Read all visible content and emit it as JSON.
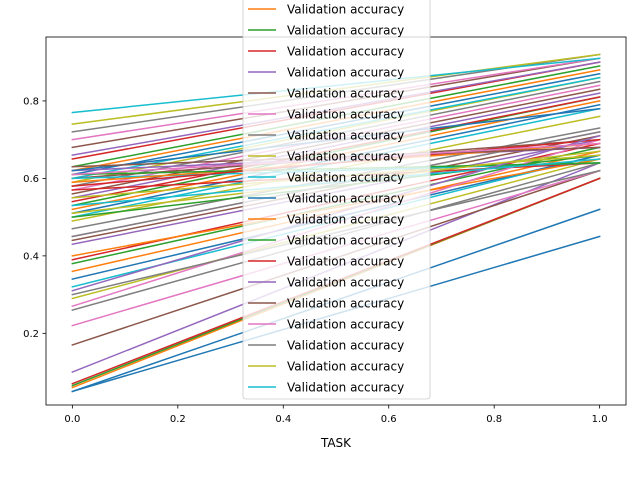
{
  "chart_data": {
    "type": "line",
    "title": "",
    "xlabel": "TASK",
    "ylabel": "",
    "xlim": [
      -0.05,
      1.05
    ],
    "ylim": [
      0.015,
      0.965
    ],
    "grid": false,
    "legend_placement": "upper-center",
    "x_ticks": [
      "0.0",
      "0.2",
      "0.4",
      "0.6",
      "0.8",
      "1.0"
    ],
    "y_ticks": [
      "0.2",
      "0.4",
      "0.6",
      "0.8"
    ],
    "legend_entries": [
      {
        "label": "Validation accuracy",
        "color": "#ff7f0e"
      },
      {
        "label": "Validation accuracy",
        "color": "#2ca02c"
      },
      {
        "label": "Validation accuracy",
        "color": "#d62728"
      },
      {
        "label": "Validation accuracy",
        "color": "#9467bd"
      },
      {
        "label": "Validation accuracy",
        "color": "#8c564b"
      },
      {
        "label": "Validation accuracy",
        "color": "#e377c2"
      },
      {
        "label": "Validation accuracy",
        "color": "#7f7f7f"
      },
      {
        "label": "Validation accuracy",
        "color": "#bcbd22"
      },
      {
        "label": "Validation accuracy",
        "color": "#17becf"
      },
      {
        "label": "Validation accuracy",
        "color": "#1f77b4"
      },
      {
        "label": "Validation accuracy",
        "color": "#ff7f0e"
      },
      {
        "label": "Validation accuracy",
        "color": "#2ca02c"
      },
      {
        "label": "Validation accuracy",
        "color": "#d62728"
      },
      {
        "label": "Validation accuracy",
        "color": "#9467bd"
      },
      {
        "label": "Validation accuracy",
        "color": "#8c564b"
      },
      {
        "label": "Validation accuracy",
        "color": "#e377c2"
      },
      {
        "label": "Validation accuracy",
        "color": "#7f7f7f"
      },
      {
        "label": "Validation accuracy",
        "color": "#bcbd22"
      },
      {
        "label": "Validation accuracy",
        "color": "#17becf"
      }
    ],
    "x": [
      0.0,
      1.0
    ],
    "series": [
      {
        "color": "#1f77b4",
        "values": [
          0.05,
          0.45
        ]
      },
      {
        "color": "#ff7f0e",
        "values": [
          0.06,
          0.6
        ]
      },
      {
        "color": "#2ca02c",
        "values": [
          0.065,
          0.6
        ]
      },
      {
        "color": "#d62728",
        "values": [
          0.07,
          0.6
        ]
      },
      {
        "color": "#9467bd",
        "values": [
          0.1,
          0.64
        ]
      },
      {
        "color": "#8c564b",
        "values": [
          0.17,
          0.62
        ]
      },
      {
        "color": "#e377c2",
        "values": [
          0.22,
          0.62
        ]
      },
      {
        "color": "#7f7f7f",
        "values": [
          0.26,
          0.64
        ]
      },
      {
        "color": "#bcbd22",
        "values": [
          0.29,
          0.65
        ]
      },
      {
        "color": "#17becf",
        "values": [
          0.32,
          0.66
        ]
      },
      {
        "color": "#1f77b4",
        "values": [
          0.34,
          0.66
        ]
      },
      {
        "color": "#ff7f0e",
        "values": [
          0.36,
          0.67
        ]
      },
      {
        "color": "#2ca02c",
        "values": [
          0.38,
          0.68
        ]
      },
      {
        "color": "#d62728",
        "values": [
          0.39,
          0.69
        ]
      },
      {
        "color": "#9467bd",
        "values": [
          0.43,
          0.7
        ]
      },
      {
        "color": "#8c564b",
        "values": [
          0.44,
          0.71
        ]
      },
      {
        "color": "#e377c2",
        "values": [
          0.45,
          0.72
        ]
      },
      {
        "color": "#7f7f7f",
        "values": [
          0.47,
          0.73
        ]
      },
      {
        "color": "#bcbd22",
        "values": [
          0.49,
          0.76
        ]
      },
      {
        "color": "#17becf",
        "values": [
          0.5,
          0.78
        ]
      },
      {
        "color": "#1f77b4",
        "values": [
          0.51,
          0.79
        ]
      },
      {
        "color": "#ff7f0e",
        "values": [
          0.52,
          0.8
        ]
      },
      {
        "color": "#2ca02c",
        "values": [
          0.53,
          0.81
        ]
      },
      {
        "color": "#d62728",
        "values": [
          0.54,
          0.81
        ]
      },
      {
        "color": "#9467bd",
        "values": [
          0.55,
          0.82
        ]
      },
      {
        "color": "#8c564b",
        "values": [
          0.56,
          0.83
        ]
      },
      {
        "color": "#e377c2",
        "values": [
          0.57,
          0.84
        ]
      },
      {
        "color": "#7f7f7f",
        "values": [
          0.58,
          0.85
        ]
      },
      {
        "color": "#bcbd22",
        "values": [
          0.59,
          0.86
        ]
      },
      {
        "color": "#17becf",
        "values": [
          0.6,
          0.86
        ]
      },
      {
        "color": "#1f77b4",
        "values": [
          0.61,
          0.87
        ]
      },
      {
        "color": "#ff7f0e",
        "values": [
          0.62,
          0.88
        ]
      },
      {
        "color": "#2ca02c",
        "values": [
          0.63,
          0.89
        ]
      },
      {
        "color": "#d62728",
        "values": [
          0.65,
          0.9
        ]
      },
      {
        "color": "#9467bd",
        "values": [
          0.66,
          0.9
        ]
      },
      {
        "color": "#8c564b",
        "values": [
          0.68,
          0.91
        ]
      },
      {
        "color": "#e377c2",
        "values": [
          0.7,
          0.91
        ]
      },
      {
        "color": "#7f7f7f",
        "values": [
          0.72,
          0.92
        ]
      },
      {
        "color": "#bcbd22",
        "values": [
          0.74,
          0.92
        ]
      },
      {
        "color": "#17becf",
        "values": [
          0.77,
          0.91
        ]
      },
      {
        "color": "#1f77b4",
        "values": [
          0.05,
          0.52
        ]
      },
      {
        "color": "#ff7f0e",
        "values": [
          0.4,
          0.65
        ]
      },
      {
        "color": "#2ca02c",
        "values": [
          0.5,
          0.66
        ]
      },
      {
        "color": "#d62728",
        "values": [
          0.57,
          0.64
        ]
      },
      {
        "color": "#9467bd",
        "values": [
          0.62,
          0.68
        ]
      },
      {
        "color": "#8c564b",
        "values": [
          0.6,
          0.7
        ]
      },
      {
        "color": "#e377c2",
        "values": [
          0.27,
          0.7
        ]
      },
      {
        "color": "#7f7f7f",
        "values": [
          0.45,
          0.72
        ]
      },
      {
        "color": "#bcbd22",
        "values": [
          0.55,
          0.66
        ]
      },
      {
        "color": "#17becf",
        "values": [
          0.6,
          0.64
        ]
      },
      {
        "color": "#1f77b4",
        "values": [
          0.62,
          0.78
        ]
      },
      {
        "color": "#ff7f0e",
        "values": [
          0.59,
          0.69
        ]
      },
      {
        "color": "#2ca02c",
        "values": [
          0.61,
          0.64
        ]
      },
      {
        "color": "#d62728",
        "values": [
          0.58,
          0.7
        ]
      },
      {
        "color": "#9467bd",
        "values": [
          0.31,
          0.71
        ]
      },
      {
        "color": "#8c564b",
        "values": [
          0.63,
          0.68
        ]
      },
      {
        "color": "#e377c2",
        "values": [
          0.61,
          0.69
        ]
      },
      {
        "color": "#7f7f7f",
        "values": [
          0.3,
          0.62
        ]
      },
      {
        "color": "#bcbd22",
        "values": [
          0.51,
          0.67
        ]
      },
      {
        "color": "#17becf",
        "values": [
          0.53,
          0.65
        ]
      }
    ]
  }
}
